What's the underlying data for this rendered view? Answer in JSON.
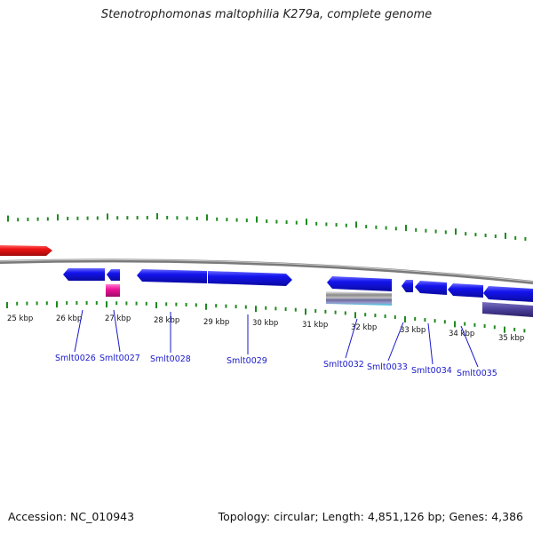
{
  "title": "Stenotrophomonas maltophilia K279a, complete genome",
  "accession": "Accession: NC_010943",
  "stats": "Topology: circular; Length: 4,851,126 bp; Genes: 4,386",
  "kbp_labels": [
    "25 kbp",
    "26 kbp",
    "27 kbp",
    "28 kbp",
    "29 kbp",
    "30 kbp",
    "31 kbp",
    "32 kbp",
    "33 kbp",
    "34 kbp",
    "35 kbp"
  ],
  "gene_labels": [
    "Smlt0026",
    "Smlt0027",
    "Smlt0028",
    "Smlt0029",
    "Smlt0032",
    "Smlt0033",
    "Smlt0034",
    "Smlt0035"
  ],
  "colors": {
    "tick": "#1f8a1f",
    "backbone": "#8a8a8a",
    "cds": "#1010e0",
    "rna": "#e01010",
    "trna": "#e0109a",
    "label": "#1a1acc"
  }
}
